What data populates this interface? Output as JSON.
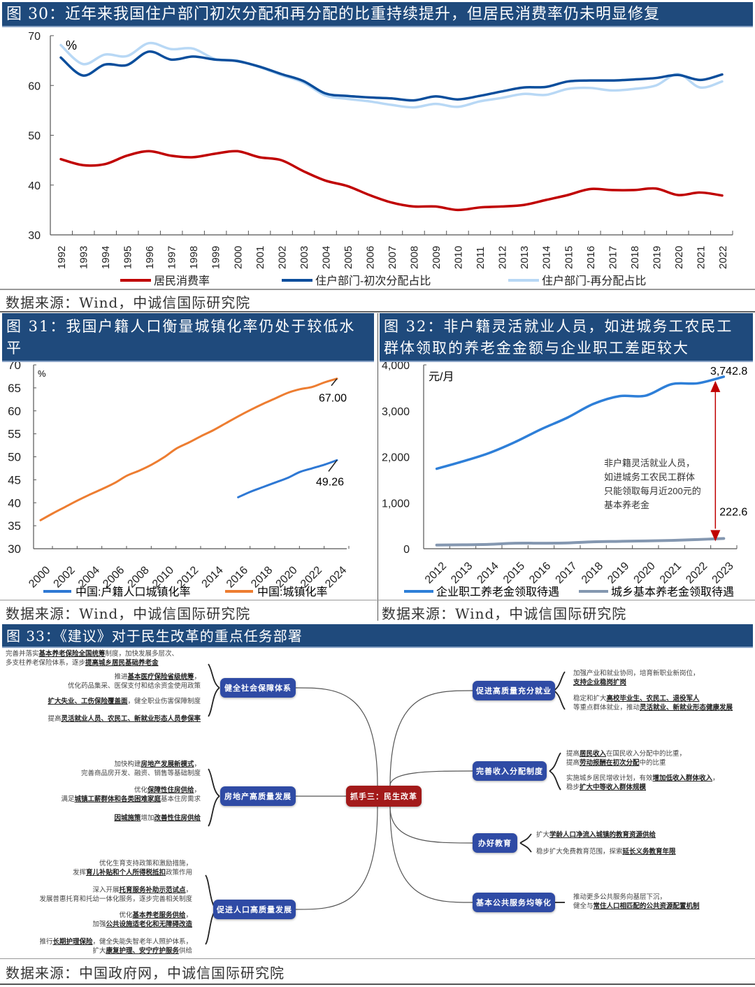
{
  "fig30": {
    "title": "图 30：近年来我国住户部门初次分配和再分配的比重持续提升，但居民消费率仍未明显修复",
    "source": "数据来源：Wind，中诚信国际研究院"
  },
  "fig31": {
    "title_line1": "图 31：我国户籍人口衡量城镇化率仍处于较低水",
    "title_line2": "平",
    "source": "数据来源：Wind，中诚信国际研究院"
  },
  "fig32": {
    "title_line1": "图 32：非户籍灵活就业人员，如进城务工农民工",
    "title_line2": "群体领取的养老金金额与企业职工差距较大",
    "source": "数据来源：Wind，中诚信国际研究院"
  },
  "fig33": {
    "title": "图 33：《建议》对于民生改革的重点任务部署",
    "source": "数据来源：中国政府网，中诚信国际研究院",
    "center": "抓手三：民生改革",
    "branches": [
      {
        "label": "健全社会保障体系",
        "items": [
          {
            "pre": "完善并落实",
            "bold": "基本养老保险全国统筹",
            "post": "制度，加快发展多层次、"
          },
          {
            "pre": "多支柱养老保险体系，逐步",
            "bold": "提高城乡居民基础养老金",
            "post": ""
          },
          {
            "pre": "推进",
            "bold": "基本医疗保险省级统筹",
            "post": "，"
          },
          {
            "pre": "优化药品集采、医保支付和结余资金使用政策",
            "bold": "",
            "post": ""
          },
          {
            "pre": "",
            "bold": "扩大失业、工伤保险覆盖面",
            "post": "，健全职业伤害保障制度"
          },
          {
            "pre": "提高",
            "bold": "灵活就业人员、农民工、新就业形态人员参保率",
            "post": ""
          }
        ]
      },
      {
        "label": "房地产高质量发展",
        "items": [
          {
            "pre": "加快构建",
            "bold": "房地产发展新模式",
            "post": "，"
          },
          {
            "pre": "完善商品房开发、融资、销售等基础制度",
            "bold": "",
            "post": ""
          },
          {
            "pre": "优化",
            "bold": "保障性住房供给",
            "post": "，"
          },
          {
            "pre": "满足",
            "bold": "城镇工薪群体和各类困难家庭",
            "post": "基本住房需求"
          },
          {
            "pre": "",
            "bold": "因城施策",
            "post": "增加",
            "bold2": "改善性住房供给"
          }
        ]
      },
      {
        "label": "促进人口高质量发展",
        "items": [
          {
            "pre": "优化生育支持政策和激励措施，",
            "bold": "",
            "post": ""
          },
          {
            "pre": "发挥",
            "bold": "育儿补贴和个人所得税抵扣",
            "post": "政策作用"
          },
          {
            "pre": "深入开展",
            "bold": "托育服务补助示范试点",
            "post": "，"
          },
          {
            "pre": "发展普惠托育和托幼一体化服务，逐步完善相关制度",
            "bold": "",
            "post": ""
          },
          {
            "pre": "优化",
            "bold": "基本养老服务供给",
            "post": "，"
          },
          {
            "pre": "加强",
            "bold": "公共设施适老化和无障碍改造",
            "post": ""
          },
          {
            "pre": "推行",
            "bold": "长期护理保险",
            "post": "，健全失能失智老年人照护体系，"
          },
          {
            "pre": "扩大",
            "bold": "康复护理、安宁疗护服务",
            "post": "供给"
          }
        ]
      },
      {
        "label": "促进高质量充分就业",
        "items": [
          {
            "pre": "加强产业和就业协同，培育新职业新岗位，",
            "bold": "",
            "post": ""
          },
          {
            "pre": "",
            "bold": "支持企业稳岗扩岗",
            "post": ""
          },
          {
            "pre": "稳定和扩大",
            "bold": "高校毕业生、农民工、退役军人",
            "post": ""
          },
          {
            "pre": "等重点群体就业，推动",
            "bold": "灵活就业、新就业形态健康发展",
            "post": ""
          }
        ]
      },
      {
        "label": "完善收入分配制度",
        "items": [
          {
            "pre": "提高",
            "bold": "居民收入",
            "post": "在国民收入分配中的比重，"
          },
          {
            "pre": "提高",
            "bold": "劳动报酬在初次分配",
            "post": "中的比重"
          },
          {
            "pre": "实施城乡居民增收计划，有效",
            "bold": "增加低收入群体收入",
            "post": "，"
          },
          {
            "pre": "稳步",
            "bold": "扩大中等收入群体规模",
            "post": ""
          }
        ]
      },
      {
        "label": "办好教育",
        "items": [
          {
            "pre": "扩大",
            "bold": "学龄人口净流入城镇的教育资源供给",
            "post": ""
          },
          {
            "pre": "稳步扩大免费教育范围，探索",
            "bold": "延长义务教育年限",
            "post": ""
          }
        ]
      },
      {
        "label": "基本公共服务均等化",
        "items": [
          {
            "pre": "推动更多公共服务向基层下沉，",
            "bold": "",
            "post": ""
          },
          {
            "pre": "健全与",
            "bold": "常住人口相匹配的公共资源配置机制",
            "post": ""
          }
        ]
      }
    ]
  },
  "chart_data": [
    {
      "id": "fig30",
      "type": "line",
      "title": "近年来我国住户部门初次分配和再分配的比重持续提升，但居民消费率仍未明显修复",
      "ylabel": "%",
      "xlabel": "",
      "ylim": [
        30,
        70
      ],
      "yticks": [
        30,
        40,
        50,
        60,
        70
      ],
      "x": [
        1992,
        1993,
        1994,
        1995,
        1996,
        1997,
        1998,
        1999,
        2000,
        2001,
        2002,
        2003,
        2004,
        2005,
        2006,
        2007,
        2008,
        2009,
        2010,
        2011,
        2012,
        2013,
        2014,
        2015,
        2016,
        2017,
        2018,
        2019,
        2020,
        2021,
        2022
      ],
      "legend_position": "bottom",
      "series": [
        {
          "name": "居民消费率",
          "color": "#c00000",
          "values": [
            45.2,
            44.0,
            44.2,
            45.9,
            46.8,
            45.9,
            45.6,
            46.3,
            46.8,
            45.6,
            45.0,
            42.8,
            40.9,
            39.8,
            38.0,
            36.5,
            35.7,
            35.7,
            35.0,
            35.5,
            35.7,
            36.0,
            37.0,
            38.0,
            39.2,
            39.0,
            39.0,
            39.3,
            38.0,
            38.5,
            37.9
          ]
        },
        {
          "name": "住户部门-初次分配占比",
          "color": "#0b4e9c",
          "values": [
            65.6,
            62.0,
            64.2,
            64.1,
            66.8,
            65.2,
            65.8,
            65.2,
            64.9,
            63.8,
            62.3,
            60.9,
            58.4,
            57.9,
            57.6,
            57.4,
            57.0,
            57.8,
            57.2,
            57.9,
            58.8,
            59.6,
            59.7,
            60.8,
            61.0,
            61.0,
            61.2,
            61.5,
            62.1,
            61.1,
            62.2
          ]
        },
        {
          "name": "住户部门-再分配占比",
          "color": "#b8d8f5",
          "values": [
            68.1,
            64.3,
            66.2,
            65.9,
            68.5,
            67.3,
            67.4,
            65.3,
            65.0,
            63.7,
            62.1,
            60.6,
            58.0,
            57.3,
            56.8,
            56.1,
            55.6,
            56.3,
            55.7,
            56.8,
            57.5,
            58.3,
            58.1,
            59.3,
            59.5,
            59.0,
            59.3,
            60.0,
            62.3,
            59.6,
            60.8
          ]
        }
      ]
    },
    {
      "id": "fig31",
      "type": "line",
      "title": "我国户籍人口衡量城镇化率仍处于较低水平",
      "ylabel": "%",
      "ylim": [
        30,
        70
      ],
      "yticks": [
        30,
        35,
        40,
        45,
        50,
        55,
        60,
        65,
        70
      ],
      "xticks": [
        2000,
        2002,
        2004,
        2006,
        2008,
        2010,
        2012,
        2014,
        2016,
        2018,
        2020,
        2022,
        2024
      ],
      "legend_position": "bottom",
      "annotations": [
        {
          "text": "67.00",
          "series": "中国:城镇化率"
        },
        {
          "text": "49.26",
          "series": "中国:户籍人口城镇化率"
        }
      ],
      "series": [
        {
          "name": "中国:户籍人口城镇化率",
          "color": "#2e78d4",
          "x": [
            2016,
            2017,
            2018,
            2019,
            2020,
            2021,
            2022,
            2023,
            2024
          ],
          "values": [
            41.2,
            42.4,
            43.4,
            44.4,
            45.4,
            46.7,
            47.5,
            48.3,
            49.26
          ]
        },
        {
          "name": "中国:城镇化率",
          "color": "#ed7d31",
          "x": [
            2000,
            2001,
            2002,
            2003,
            2004,
            2005,
            2006,
            2007,
            2008,
            2009,
            2010,
            2011,
            2012,
            2013,
            2014,
            2015,
            2016,
            2017,
            2018,
            2019,
            2020,
            2021,
            2022,
            2023,
            2024
          ],
          "values": [
            36.2,
            37.7,
            39.1,
            40.5,
            41.8,
            43.0,
            44.3,
            45.9,
            47.0,
            48.3,
            49.9,
            51.8,
            53.1,
            54.5,
            55.8,
            57.3,
            58.8,
            60.2,
            61.5,
            62.7,
            63.9,
            64.7,
            65.2,
            66.2,
            67.0
          ]
        }
      ]
    },
    {
      "id": "fig32",
      "type": "line",
      "title": "非户籍灵活就业人员，如进城务工农民工群体领取的养老金金额与企业职工差距较大",
      "ylabel": "元/月",
      "ylim": [
        0,
        4000
      ],
      "yticks": [
        0,
        1000,
        2000,
        3000,
        4000
      ],
      "ytick_labels": [
        "0",
        "1,000",
        "2,000",
        "3,000",
        "4,000"
      ],
      "x": [
        2012,
        2013,
        2014,
        2015,
        2016,
        2017,
        2018,
        2019,
        2020,
        2021,
        2022,
        2023
      ],
      "legend_position": "bottom",
      "annotations": [
        {
          "text": "3,742.8",
          "series": "企业职工养老金领取待遇"
        },
        {
          "text": "222.6",
          "series": "城乡基本养老金领取待遇"
        },
        {
          "text": "非户籍灵活就业人员，如进城务工农民工群体只能领取每月近200元的基本养老金",
          "lines": [
            "非户籍灵活就业人员，",
            "如进城务工农民工群体",
            "只能领取每月近200元的",
            "基本养老金"
          ]
        }
      ],
      "series": [
        {
          "name": "企业职工养老金领取待遇",
          "color": "#2e7fd8",
          "values": [
            1740,
            1900,
            2080,
            2320,
            2600,
            2850,
            3150,
            3320,
            3330,
            3580,
            3600,
            3742.8
          ]
        },
        {
          "name": "城乡基本养老金领取待遇",
          "color": "#8497b0",
          "values": [
            80,
            85,
            95,
            120,
            120,
            125,
            150,
            160,
            170,
            180,
            200,
            222.6
          ]
        }
      ]
    }
  ]
}
